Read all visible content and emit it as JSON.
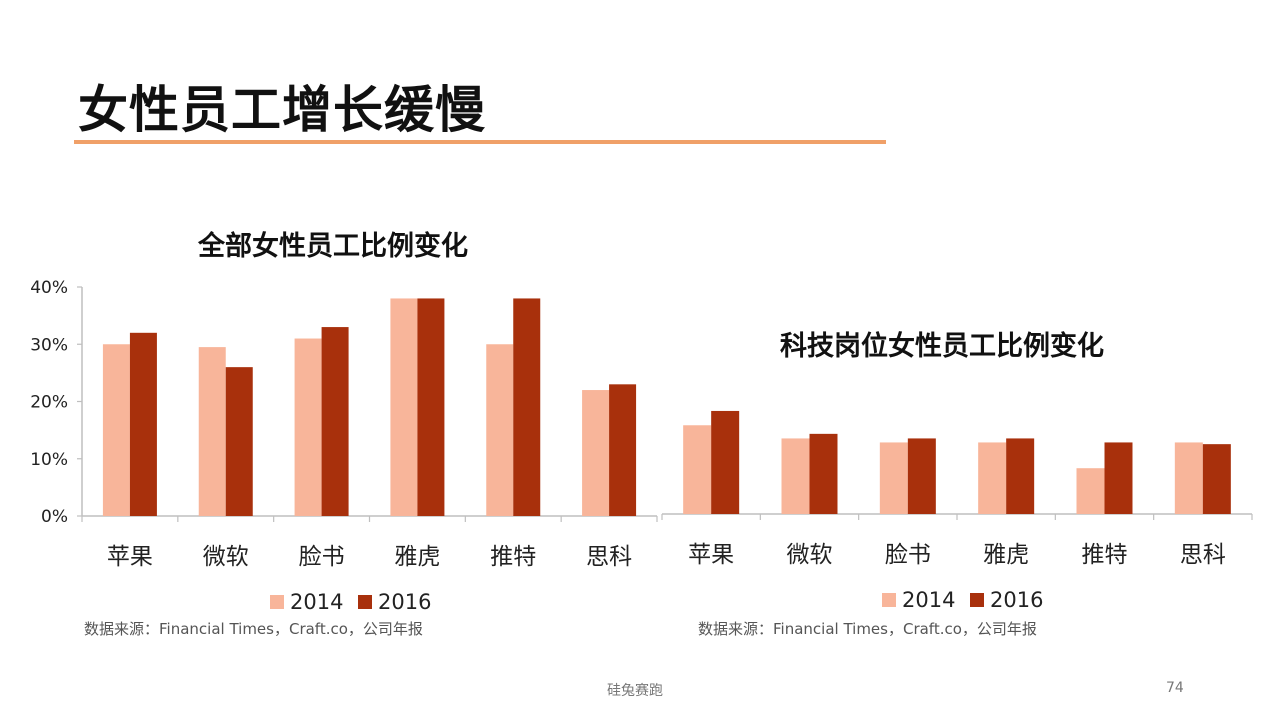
{
  "slide": {
    "title": "女性员工增长缓慢",
    "footer_brand": "硅兔赛跑",
    "page_number": "74"
  },
  "colors": {
    "accent_rule": "#f0a068",
    "series_2014": "#f8b59a",
    "series_2016": "#a8300c",
    "axis": "#bfbfbf"
  },
  "chart_data": [
    {
      "type": "bar",
      "title": "全部女性员工比例变化",
      "categories": [
        "苹果",
        "微软",
        "脸书",
        "雅虎",
        "推特",
        "思科"
      ],
      "series": [
        {
          "name": "2014",
          "values": [
            30,
            29.5,
            31,
            38,
            30,
            22
          ]
        },
        {
          "name": "2016",
          "values": [
            32,
            26,
            33,
            38,
            38,
            23
          ]
        }
      ],
      "ylim": [
        0,
        40
      ],
      "yticks": [
        0,
        10,
        20,
        30,
        40
      ],
      "ytick_labels": [
        "0%",
        "10%",
        "20%",
        "30%",
        "40%"
      ],
      "grid": false,
      "legend": "bottom",
      "source": "数据来源：Financial Times，Craft.co，公司年报"
    },
    {
      "type": "bar",
      "title": "科技岗位女性员工比例变化",
      "categories": [
        "苹果",
        "微软",
        "脸书",
        "雅虎",
        "推特",
        "思科"
      ],
      "series": [
        {
          "name": "2014",
          "values": [
            15.5,
            13.2,
            12.5,
            12.5,
            8,
            12.5
          ]
        },
        {
          "name": "2016",
          "values": [
            18,
            14,
            13.2,
            13.2,
            12.5,
            12.2
          ]
        }
      ],
      "ylim": [
        0,
        40
      ],
      "grid": false,
      "legend": "bottom",
      "source": "数据来源：Financial Times，Craft.co，公司年报"
    }
  ]
}
